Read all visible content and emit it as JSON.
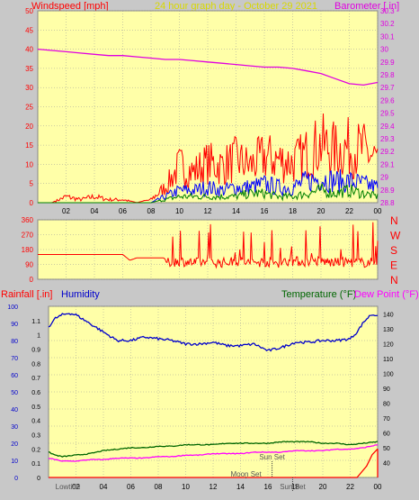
{
  "header": {
    "windspeed_label": "Windspeed [mph]",
    "date_label": "24 hour graph day - October 29 2021",
    "barometer_label": "Barometer [.in]"
  },
  "colors": {
    "background": "#c8c8c8",
    "plot_bg": "#ffffa8",
    "grid": "#9a9a9a",
    "wind_gust": "#ff0000",
    "wind_avg": "#0000ff",
    "wind_low": "#008000",
    "barometer": "#e000e0",
    "wind_dir": "#ff0000",
    "rain": "#ff0000",
    "humidity": "#0000cc",
    "temperature": "#006600",
    "dewpoint": "#ff00ff",
    "title": "#d8d800"
  },
  "chart_data": [
    {
      "type": "line",
      "title": "24 hour graph day - October 29 2021",
      "x_ticks": [
        "02",
        "04",
        "06",
        "08",
        "10",
        "12",
        "14",
        "16",
        "18",
        "20",
        "22",
        "00"
      ],
      "x_range_hours": [
        0,
        24
      ],
      "y_left": {
        "label": "Windspeed [mph]",
        "range": [
          0,
          50
        ],
        "ticks": [
          0,
          5,
          10,
          15,
          20,
          25,
          30,
          35,
          40,
          45,
          50
        ]
      },
      "y_right": {
        "label": "Barometer [.in]",
        "range": [
          28.8,
          30.3
        ],
        "ticks": [
          "28.8",
          "28.9",
          "29",
          "29.1",
          "29.2",
          "29.3",
          "29.4",
          "29.5",
          "29.6",
          "29.7",
          "29.8",
          "29.9",
          "30",
          "30.1",
          "30.2",
          "30.3"
        ]
      },
      "series": [
        {
          "name": "Barometer [.in]",
          "axis": "right",
          "hours": [
            0,
            1,
            2,
            3,
            4,
            5,
            6,
            7,
            8,
            9,
            10,
            11,
            12,
            13,
            14,
            15,
            16,
            17,
            18,
            19,
            20,
            21,
            22,
            23,
            24
          ],
          "values": [
            30.0,
            29.99,
            29.98,
            29.97,
            29.96,
            29.95,
            29.95,
            29.94,
            29.93,
            29.92,
            29.92,
            29.91,
            29.9,
            29.89,
            29.88,
            29.87,
            29.86,
            29.86,
            29.85,
            29.83,
            29.81,
            29.77,
            29.73,
            29.72,
            29.74
          ]
        },
        {
          "name": "Gust",
          "axis": "left",
          "hours": [
            0,
            1,
            2,
            3,
            4,
            5,
            6,
            7,
            8,
            9,
            10,
            11,
            12,
            13,
            14,
            15,
            16,
            17,
            18,
            19,
            20,
            21,
            22,
            23,
            24
          ],
          "values": [
            0,
            0,
            2,
            1,
            2,
            1,
            1,
            0,
            1,
            5,
            12,
            10,
            13,
            12,
            14,
            12,
            15,
            14,
            13,
            16,
            19,
            17,
            18,
            17,
            14
          ]
        },
        {
          "name": "Average",
          "axis": "left",
          "hours": [
            0,
            1,
            2,
            3,
            4,
            5,
            6,
            7,
            8,
            9,
            10,
            11,
            12,
            13,
            14,
            15,
            16,
            17,
            18,
            19,
            20,
            21,
            22,
            23,
            24
          ],
          "values": [
            0,
            0,
            0,
            0,
            0,
            0,
            0,
            0,
            0,
            2,
            4,
            4,
            5,
            4,
            5,
            5,
            6,
            5,
            5,
            7,
            8,
            7,
            7,
            6,
            5
          ]
        },
        {
          "name": "Low",
          "axis": "left",
          "hours": [
            0,
            1,
            2,
            3,
            4,
            5,
            6,
            7,
            8,
            9,
            10,
            11,
            12,
            13,
            14,
            15,
            16,
            17,
            18,
            19,
            20,
            21,
            22,
            23,
            24
          ],
          "values": [
            0,
            0,
            0,
            0,
            0,
            0,
            0,
            0,
            0,
            1,
            2,
            2,
            2,
            2,
            2,
            3,
            3,
            2,
            2,
            3,
            4,
            3,
            4,
            3,
            2
          ]
        }
      ]
    },
    {
      "type": "line",
      "x_ticks": [
        "02",
        "04",
        "06",
        "08",
        "10",
        "12",
        "14",
        "16",
        "18",
        "20",
        "22",
        "00"
      ],
      "y_left": {
        "range": [
          0,
          360
        ],
        "ticks": [
          0,
          90,
          180,
          270,
          360
        ]
      },
      "y_right_labels": [
        "N",
        "E",
        "S",
        "W",
        "N"
      ],
      "series": [
        {
          "name": "Wind direction",
          "hours": [
            0,
            1,
            2,
            3,
            4,
            5,
            6,
            6.5,
            7,
            8,
            8.9,
            9.2,
            10,
            11,
            12,
            13,
            14,
            15,
            16,
            17,
            18,
            19,
            20,
            21,
            22,
            23,
            24
          ],
          "values": [
            150,
            150,
            150,
            150,
            150,
            150,
            150,
            115,
            130,
            130,
            130,
            100,
            110,
            100,
            105,
            100,
            110,
            100,
            105,
            100,
            110,
            105,
            110,
            100,
            105,
            100,
            110
          ]
        }
      ]
    },
    {
      "type": "line",
      "x_ticks": [
        "02",
        "04",
        "06",
        "08",
        "10",
        "12",
        "14",
        "16",
        "18",
        "20",
        "22",
        "00"
      ],
      "y_left_rain": {
        "label": "Rainfall [.in]",
        "range": [
          0,
          1.2
        ],
        "ticks": [
          "0",
          "0.1",
          "0.2",
          "0.3",
          "0.4",
          "0.5",
          "0.6",
          "0.7",
          "0.8",
          "0.9",
          "1",
          "1.1"
        ]
      },
      "y_left_humidity": {
        "label": "Humidity",
        "range": [
          0,
          100
        ],
        "ticks": [
          0,
          10,
          20,
          30,
          40,
          50,
          60,
          70,
          80,
          90,
          100
        ]
      },
      "y_right": {
        "label": "Temperature (°F)",
        "range": [
          30,
          145
        ],
        "ticks": [
          40,
          50,
          60,
          70,
          80,
          90,
          100,
          110,
          120,
          130,
          140
        ]
      },
      "dewpoint_label": "Dew Point (°F)",
      "series": [
        {
          "name": "Humidity",
          "hours": [
            0,
            0.5,
            1,
            1.5,
            2,
            3,
            4,
            5,
            6,
            7,
            8,
            9,
            10,
            11,
            12,
            13,
            14,
            15,
            16,
            17,
            18,
            19,
            20,
            21,
            22,
            22.5,
            23,
            23.5,
            24
          ],
          "values": [
            88,
            93,
            95,
            96,
            95,
            90,
            85,
            80,
            80,
            82,
            81,
            80,
            78,
            78,
            79,
            77,
            77,
            78,
            74,
            76,
            79,
            79,
            80,
            80,
            81,
            85,
            91,
            95,
            95
          ]
        },
        {
          "name": "Temperature (°F)",
          "hours": [
            0,
            0.5,
            1,
            2,
            3,
            4,
            5,
            6,
            7,
            8,
            9,
            10,
            11,
            12,
            13,
            14,
            15,
            16,
            17,
            18,
            19,
            20,
            21,
            22,
            23,
            24
          ],
          "values": [
            47,
            45,
            44,
            45,
            46,
            48,
            49,
            50,
            50,
            51,
            51,
            52,
            52,
            52,
            53,
            53,
            53,
            53,
            54,
            54,
            54,
            53,
            53,
            52,
            53,
            54
          ]
        },
        {
          "name": "Dew Point (°F)",
          "hours": [
            0,
            0.5,
            1,
            2,
            3,
            4,
            5,
            6,
            7,
            8,
            9,
            10,
            11,
            12,
            13,
            14,
            15,
            16,
            17,
            18,
            19,
            20,
            21,
            22,
            23,
            24
          ],
          "values": [
            43,
            42,
            41,
            41,
            42,
            42,
            43,
            43,
            43,
            44,
            44,
            45,
            45,
            46,
            46,
            46,
            47,
            47,
            47,
            48,
            48,
            48,
            49,
            49,
            50,
            52
          ]
        },
        {
          "name": "Rainfall [.in]",
          "hours": [
            0,
            22.5,
            23.2,
            23.6,
            24
          ],
          "values": [
            0,
            0,
            0.08,
            0.16,
            0.2
          ]
        }
      ],
      "annotations": [
        {
          "label": "Lowtide",
          "hour": 0.5
        },
        {
          "label": "Sun Set",
          "hour": 16.3
        },
        {
          "label": "Moon Set",
          "hour": 14.4
        },
        {
          "label": "Sun Set",
          "hour": 17.8
        }
      ]
    }
  ]
}
